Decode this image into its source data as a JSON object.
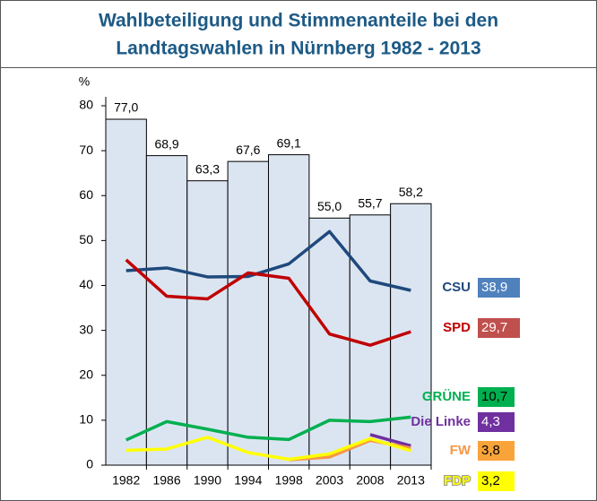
{
  "chart_data": {
    "type": "bar_line",
    "title": [
      "Wahlbeteiligung und Stimmenanteile bei den",
      "Landtagswahlen in Nürnberg 1982 - 2013"
    ],
    "y_unit": "%",
    "categories": [
      "1982",
      "1986",
      "1990",
      "1994",
      "1998",
      "2003",
      "2008",
      "2013"
    ],
    "values": [
      77.0,
      68.9,
      63.3,
      67.6,
      69.1,
      55.0,
      55.7,
      58.2
    ],
    "value_labels": [
      "77,0",
      "68,9",
      "63,3",
      "67,6",
      "69,1",
      "55,0",
      "55,7",
      "58,2"
    ],
    "color": "#dbe5f1",
    "ylim": [
      0,
      80
    ],
    "yticks": [
      0,
      10,
      20,
      30,
      40,
      50,
      60,
      70,
      80
    ],
    "series": [
      {
        "name": "CSU",
        "color": "#1f497d",
        "label_color": "#4f81bd",
        "values": [
          43.3,
          43.9,
          41.9,
          42.0,
          44.8,
          52.0,
          41.0,
          38.9
        ],
        "value_labels": [
          null,
          null,
          null,
          null,
          null,
          null,
          null,
          "38,9"
        ]
      },
      {
        "name": "SPD",
        "color": "#c00000",
        "label_color": "#c0504d",
        "values": [
          45.7,
          37.6,
          37.0,
          42.8,
          41.6,
          29.2,
          26.7,
          29.7
        ],
        "value_labels": [
          null,
          null,
          null,
          null,
          null,
          null,
          null,
          "29,7"
        ]
      },
      {
        "name": "GRÜNE",
        "color": "#00b050",
        "label_color": "#00b050",
        "values": [
          5.6,
          9.7,
          8.0,
          6.2,
          5.7,
          10.0,
          9.7,
          10.7
        ],
        "value_labels": [
          null,
          null,
          null,
          null,
          null,
          null,
          null,
          "10,7"
        ]
      },
      {
        "name": "Die Linke",
        "color": "#7030a0",
        "label_color": "#7030a0",
        "values": [
          null,
          null,
          null,
          null,
          null,
          null,
          6.8,
          4.3
        ],
        "value_labels": [
          null,
          null,
          null,
          null,
          null,
          null,
          null,
          "4,3"
        ]
      },
      {
        "name": "FW",
        "color": "#f79646",
        "label_color": "#f9a43a",
        "values": [
          null,
          null,
          null,
          null,
          1.2,
          1.8,
          5.5,
          3.8
        ],
        "value_labels": [
          null,
          null,
          null,
          null,
          null,
          null,
          null,
          "3,8"
        ]
      },
      {
        "name": "FDP",
        "color": "#ffff00",
        "label_color": "#ffff00",
        "values": [
          3.3,
          3.6,
          6.2,
          2.8,
          1.3,
          2.5,
          5.9,
          3.2
        ],
        "value_labels": [
          null,
          null,
          null,
          null,
          null,
          null,
          null,
          "3,2"
        ]
      }
    ]
  }
}
